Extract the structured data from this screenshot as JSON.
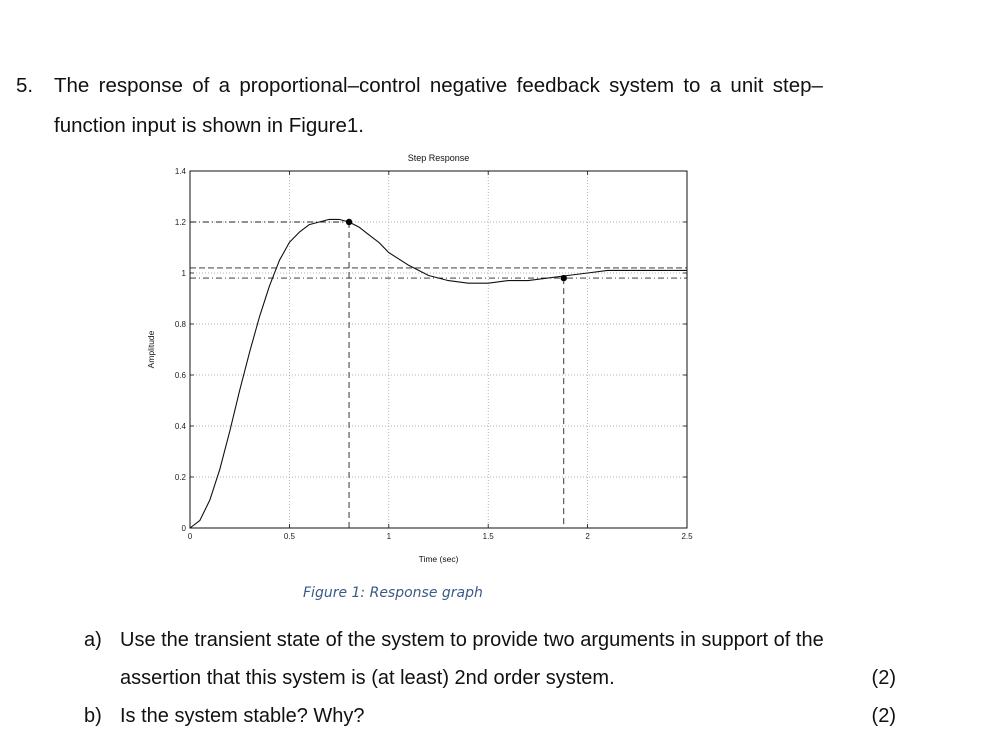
{
  "question": {
    "number": "5.",
    "line1": "The response of a proportional–control negative feedback system to a unit step–",
    "line2": "function input is shown in Figure1."
  },
  "chart_data": {
    "type": "line",
    "title": "Step Response",
    "xlabel": "Time (sec)",
    "ylabel": "Amplitude",
    "xlim": [
      0,
      2.5
    ],
    "ylim": [
      0,
      1.4
    ],
    "xticks": [
      "0",
      "0.5",
      "1",
      "1.5",
      "2",
      "2.5"
    ],
    "yticks": [
      "0",
      "0.2",
      "0.4",
      "0.6",
      "0.8",
      "1",
      "1.2",
      "1.4"
    ],
    "grid": true,
    "series": [
      {
        "x": [
          0,
          0.05,
          0.1,
          0.15,
          0.2,
          0.25,
          0.3,
          0.35,
          0.4,
          0.45,
          0.5,
          0.55,
          0.6,
          0.65,
          0.7,
          0.75,
          0.8,
          0.85,
          0.9,
          0.95,
          1.0,
          1.1,
          1.2,
          1.3,
          1.4,
          1.5,
          1.6,
          1.7,
          1.8,
          1.9,
          2.0,
          2.1,
          2.2,
          2.3,
          2.4,
          2.5
        ],
        "y": [
          0,
          0.03,
          0.11,
          0.23,
          0.38,
          0.54,
          0.69,
          0.83,
          0.95,
          1.05,
          1.12,
          1.16,
          1.19,
          1.2,
          1.21,
          1.21,
          1.2,
          1.18,
          1.15,
          1.12,
          1.08,
          1.03,
          0.99,
          0.97,
          0.96,
          0.96,
          0.97,
          0.97,
          0.98,
          0.99,
          1.0,
          1.01,
          1.01,
          1.01,
          1.01,
          1.01
        ]
      }
    ],
    "markers": [
      {
        "x": 0.8,
        "y": 1.2
      },
      {
        "x": 1.88,
        "y": 0.98
      }
    ],
    "reference_lines": {
      "peak_value": 1.2,
      "settling_band_upper": 1.02,
      "settling_band_lower": 0.98,
      "peak_time": 0.8,
      "settling_time": 1.88
    }
  },
  "figure_caption": "Figure 1: Response graph",
  "parts": [
    {
      "label": "a)",
      "line1": "Use the transient state of the system to provide two arguments in support of the",
      "line2": "assertion that this system is (at least) 2nd order system.",
      "marks": "(2)"
    },
    {
      "label": "b)",
      "line1": "Is the system stable? Why?",
      "marks": "(2)"
    }
  ]
}
